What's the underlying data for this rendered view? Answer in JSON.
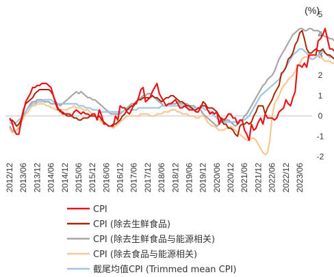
{
  "chart_data": {
    "type": "line",
    "unit_label": "(%)",
    "x_tick_labels": [
      "2012/12",
      "2013/06",
      "2013/12",
      "2014/06",
      "2014/12",
      "2015/06",
      "2015/12",
      "2016/06",
      "2016/12",
      "2017/06",
      "2017/12",
      "2018/06",
      "2018/12",
      "2019/06",
      "2019/12",
      "2020/06",
      "2020/12",
      "2021/06",
      "2021/12",
      "2022/06",
      "2022/12",
      "2023/06"
    ],
    "x_start": "2012/12",
    "ylim": [
      -2,
      5
    ],
    "y_ticks": [
      -2,
      -1,
      0,
      1,
      2,
      3,
      4,
      5
    ],
    "grid": false,
    "legend_position": "bottom",
    "series": [
      {
        "name": "CPI",
        "color": "#e8151b",
        "width": 2.2,
        "values": [
          -0.1,
          -0.3,
          -0.7,
          -0.9,
          -0.9,
          -0.3,
          0.2,
          0.7,
          0.9,
          1.1,
          1.4,
          1.4,
          1.5,
          1.5,
          1.6,
          1.6,
          1.6,
          1.5,
          1.4,
          1.0,
          0.6,
          0.3,
          0.3,
          0.1,
          0.1,
          0.1,
          0.1,
          0.0,
          0.2,
          0.3,
          0.2,
          0.1,
          0.2,
          0.1,
          0.1,
          0.0,
          0.1,
          0.1,
          -0.2,
          0.3,
          0.0,
          -0.4,
          -0.4,
          -0.5,
          -0.5,
          -0.5,
          0.0,
          -0.2,
          0.5,
          0.4,
          0.4,
          0.2,
          0.1,
          0.3,
          0.6,
          0.6,
          0.9,
          1.3,
          1.4,
          0.7,
          0.8,
          0.9,
          1.2,
          1.4,
          1.6,
          1.1,
          0.9,
          0.7,
          0.5,
          0.6,
          0.6,
          0.7,
          0.8,
          0.6,
          0.4,
          0.4,
          0.5,
          0.4,
          0.3,
          0.3,
          0.3,
          0.2,
          0.2,
          0.5,
          0.5,
          0.5,
          0.3,
          0.1,
          0.2,
          0.1,
          0.2,
          -0.4,
          -0.1,
          -0.2,
          -0.1,
          0.1,
          0.1,
          -0.1,
          -0.1,
          -0.4,
          -0.2,
          -0.2,
          -0.7,
          -0.9,
          -1.2,
          -0.4,
          -0.7,
          -0.6,
          -0.3,
          -0.1,
          -0.4,
          0.1,
          -0.1,
          -0.1,
          -0.1,
          -0.2,
          -0.1,
          0.2,
          0.3,
          0.4,
          0.8,
          0.6,
          0.5,
          0.9,
          1.2,
          2.5,
          2.5,
          2.4,
          2.6,
          2.4,
          3.0,
          3.0,
          3.0,
          3.0,
          3.7,
          3.8,
          4.0,
          4.3,
          3.8,
          3.3,
          3.3,
          3.2,
          3.5,
          3.2,
          3.3,
          3.2,
          3.3,
          3.1,
          3.0,
          2.8,
          3.3,
          3.0,
          2.8,
          2.6
        ]
      },
      {
        "name": "CPI (除去生鲜食品)",
        "color": "#a82400",
        "width": 2.0,
        "values": [
          -0.2,
          -0.2,
          -0.3,
          -0.5,
          -0.4,
          -0.2,
          0.3,
          0.6,
          0.7,
          0.8,
          0.9,
          1.1,
          1.2,
          1.3,
          1.3,
          1.3,
          1.3,
          1.3,
          1.2,
          1.0,
          0.7,
          0.4,
          0.2,
          0.2,
          0.1,
          0.0,
          0.0,
          0.0,
          -0.1,
          -0.1,
          -0.2,
          -0.2,
          -0.1,
          -0.1,
          -0.1,
          0.0,
          0.0,
          0.0,
          -0.1,
          0.0,
          -0.2,
          -0.3,
          -0.4,
          -0.5,
          -0.5,
          -0.4,
          -0.4,
          -0.3,
          -0.2,
          0.0,
          0.1,
          0.3,
          0.4,
          0.5,
          0.5,
          0.7,
          0.8,
          0.8,
          0.9,
          0.9,
          0.9,
          0.9,
          1.0,
          0.9,
          0.9,
          0.8,
          0.7,
          0.8,
          0.9,
          0.9,
          1.0,
          1.0,
          0.9,
          0.8,
          0.7,
          0.7,
          0.6,
          0.5,
          0.5,
          0.4,
          0.3,
          0.3,
          0.4,
          0.4,
          0.7,
          0.6,
          0.4,
          0.4,
          0.4,
          0.3,
          0.2,
          0.0,
          -0.2,
          -0.4,
          -0.4,
          -0.6,
          -0.6,
          -0.7,
          -0.9,
          -1.0,
          -0.5,
          -0.4,
          -0.4,
          -0.3,
          -0.4,
          -0.3,
          0.0,
          0.2,
          0.5,
          0.5,
          0.5,
          0.1,
          0.4,
          0.6,
          0.8,
          1.1,
          1.3,
          1.5,
          2.1,
          2.2,
          2.4,
          2.8,
          2.9,
          3.1,
          3.5,
          3.7,
          4.1,
          4.2,
          3.8,
          3.3,
          3.1,
          3.1,
          3.2,
          3.3,
          3.2,
          3.2,
          3.3,
          3.1,
          3.0,
          3.0,
          2.9,
          2.8,
          2.7,
          2.6,
          2.6,
          2.6
        ]
      },
      {
        "name": "CPI (除去生鲜食品与能源相关)",
        "color": "#a6a6a6",
        "width": 2.2,
        "values": [
          -0.5,
          -0.7,
          -0.8,
          -0.7,
          -0.6,
          -0.3,
          0.0,
          0.2,
          0.4,
          0.6,
          0.7,
          0.7,
          0.8,
          0.8,
          0.8,
          0.7,
          0.7,
          0.7,
          0.6,
          0.6,
          0.6,
          0.6,
          0.5,
          0.6,
          0.7,
          0.8,
          0.9,
          1.0,
          1.1,
          1.2,
          1.1,
          1.2,
          1.1,
          1.0,
          0.9,
          0.9,
          0.8,
          0.8,
          0.7,
          0.6,
          0.5,
          0.4,
          0.3,
          0.2,
          0.1,
          0.1,
          0.1,
          0.1,
          0.1,
          0.2,
          0.3,
          0.4,
          0.5,
          0.6,
          0.6,
          0.7,
          0.8,
          0.9,
          1.0,
          1.0,
          1.1,
          1.1,
          1.0,
          0.9,
          0.8,
          0.7,
          0.6,
          0.5,
          0.5,
          0.6,
          0.6,
          0.6,
          0.6,
          0.7,
          0.6,
          0.6,
          0.6,
          0.6,
          0.5,
          0.5,
          0.5,
          0.4,
          0.4,
          0.3,
          0.1,
          0.0,
          -0.1,
          -0.2,
          -0.3,
          -0.4,
          -0.5,
          -0.4,
          -0.3,
          -0.3,
          -0.2,
          -0.2,
          -0.3,
          -0.4,
          -0.5,
          -0.4,
          -0.3,
          -0.2,
          0.0,
          0.1,
          0.3,
          0.5,
          0.7,
          0.9,
          1.1,
          1.3,
          1.5,
          1.6,
          1.8,
          1.9,
          2.0,
          2.2,
          2.5,
          2.8,
          3.0,
          3.2,
          3.4,
          3.6,
          3.8,
          4.0,
          4.1,
          4.2,
          4.3,
          4.3,
          4.2,
          4.2,
          4.3,
          4.3,
          4.2,
          4.2,
          4.2,
          4.1,
          4.0,
          3.9,
          3.9,
          3.8,
          3.8,
          3.7
        ]
      },
      {
        "name": "CPI (除去食品与能源相关)",
        "color": "#f8c692",
        "width": 2.2,
        "values": [
          -0.6,
          -0.8,
          -0.8,
          -0.7,
          -0.5,
          -0.3,
          -0.1,
          0.1,
          0.2,
          0.4,
          0.5,
          0.5,
          0.6,
          0.6,
          0.6,
          0.6,
          0.5,
          0.5,
          0.4,
          0.4,
          0.3,
          0.3,
          0.3,
          0.3,
          0.3,
          0.3,
          0.4,
          0.4,
          0.5,
          0.4,
          0.4,
          0.4,
          0.3,
          0.3,
          0.3,
          0.2,
          0.1,
          0.0,
          -0.1,
          -0.2,
          -0.3,
          -0.4,
          -0.4,
          -0.5,
          -0.5,
          -0.6,
          -0.5,
          -0.4,
          -0.3,
          -0.2,
          -0.1,
          0.0,
          0.0,
          0.0,
          0.0,
          0.0,
          0.0,
          0.1,
          0.1,
          0.1,
          0.1,
          0.0,
          0.0,
          0.0,
          0.1,
          0.1,
          0.1,
          0.2,
          0.2,
          0.2,
          0.3,
          0.3,
          0.3,
          0.2,
          0.2,
          0.1,
          0.1,
          0.1,
          0.0,
          0.0,
          0.0,
          -0.1,
          -0.1,
          0.0,
          0.0,
          -0.1,
          -0.3,
          -0.4,
          -0.5,
          -0.5,
          -0.6,
          -0.7,
          -0.7,
          -0.7,
          -0.6,
          -0.6,
          -0.5,
          -0.6,
          -0.7,
          -0.8,
          -0.9,
          -1.0,
          -1.1,
          -1.2,
          -1.2,
          -1.1,
          -1.1,
          -1.2,
          -1.4,
          -1.6,
          -1.8,
          -1.9,
          -1.8,
          -1.2,
          0.0,
          0.6,
          0.8,
          1.0,
          1.3,
          1.5,
          1.6,
          1.8,
          1.9,
          2.0,
          2.2,
          2.4,
          2.6,
          2.8,
          2.9,
          2.9,
          2.9,
          3.0,
          3.0,
          3.0,
          3.0,
          2.9,
          2.8,
          2.7,
          2.7,
          2.7,
          2.6,
          2.6,
          2.6,
          2.5,
          2.5
        ]
      },
      {
        "name": "截尾均值CPI (Trimmed mean CPI)",
        "color": "#9dc3e6",
        "width": 2.2,
        "values": [
          -0.3,
          -0.4,
          -0.4,
          -0.3,
          -0.2,
          -0.1,
          0.1,
          0.2,
          0.4,
          0.5,
          0.6,
          0.6,
          0.7,
          0.7,
          0.7,
          0.8,
          0.8,
          0.8,
          0.8,
          0.7,
          0.7,
          0.6,
          0.6,
          0.6,
          0.6,
          0.6,
          0.6,
          0.6,
          0.6,
          0.6,
          0.5,
          0.5,
          0.5,
          0.4,
          0.4,
          0.4,
          0.3,
          0.3,
          0.3,
          0.2,
          0.2,
          0.2,
          0.2,
          0.2,
          0.2,
          0.2,
          0.2,
          0.2,
          0.2,
          0.2,
          0.3,
          0.3,
          0.3,
          0.3,
          0.3,
          0.3,
          0.4,
          0.4,
          0.4,
          0.4,
          0.4,
          0.4,
          0.4,
          0.4,
          0.4,
          0.4,
          0.5,
          0.5,
          0.5,
          0.5,
          0.5,
          0.5,
          0.5,
          0.5,
          0.5,
          0.5,
          0.5,
          0.4,
          0.4,
          0.4,
          0.4,
          0.4,
          0.4,
          0.4,
          0.4,
          0.3,
          0.3,
          0.2,
          0.1,
          0.0,
          -0.1,
          -0.2,
          -0.2,
          -0.3,
          -0.3,
          -0.3,
          -0.3,
          -0.3,
          -0.3,
          -0.3,
          -0.3,
          -0.2,
          -0.2,
          -0.1,
          0.0,
          0.2,
          0.4,
          0.6,
          0.8,
          1.0,
          1.1,
          1.2,
          1.3,
          1.4,
          1.5,
          1.6,
          1.7,
          1.8,
          2.0,
          2.2,
          2.4,
          2.6,
          2.8,
          3.0,
          3.1,
          3.2,
          3.3,
          3.3,
          3.2,
          3.1,
          2.9,
          2.8,
          2.8,
          2.9,
          3.0,
          3.1,
          3.2,
          3.1,
          3.0,
          2.9,
          2.9,
          2.8,
          2.8,
          2.7,
          2.7
        ]
      }
    ]
  }
}
